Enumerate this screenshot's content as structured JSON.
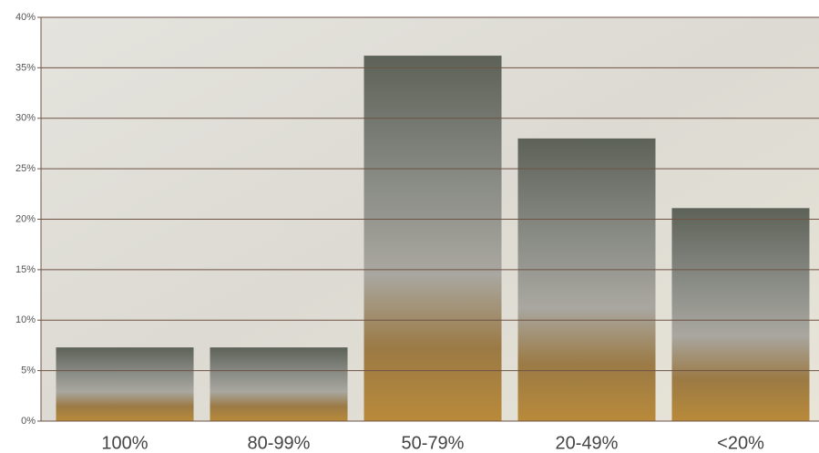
{
  "chart_data": {
    "type": "bar",
    "categories": [
      "100%",
      "80-99%",
      "50-79%",
      "20-49%",
      "<20%"
    ],
    "values": [
      7.3,
      7.3,
      36.2,
      28,
      21.1
    ],
    "ylim": [
      0,
      40
    ],
    "yticks": [
      {
        "value": 0,
        "label": "0%"
      },
      {
        "value": 5,
        "label": "5%"
      },
      {
        "value": 10,
        "label": "10%"
      },
      {
        "value": 15,
        "label": "15%"
      },
      {
        "value": 20,
        "label": "20%"
      },
      {
        "value": 25,
        "label": "25%"
      },
      {
        "value": 30,
        "label": "30%"
      },
      {
        "value": 35,
        "label": "35%"
      },
      {
        "value": 40,
        "label": "40%"
      }
    ],
    "grid": true
  }
}
